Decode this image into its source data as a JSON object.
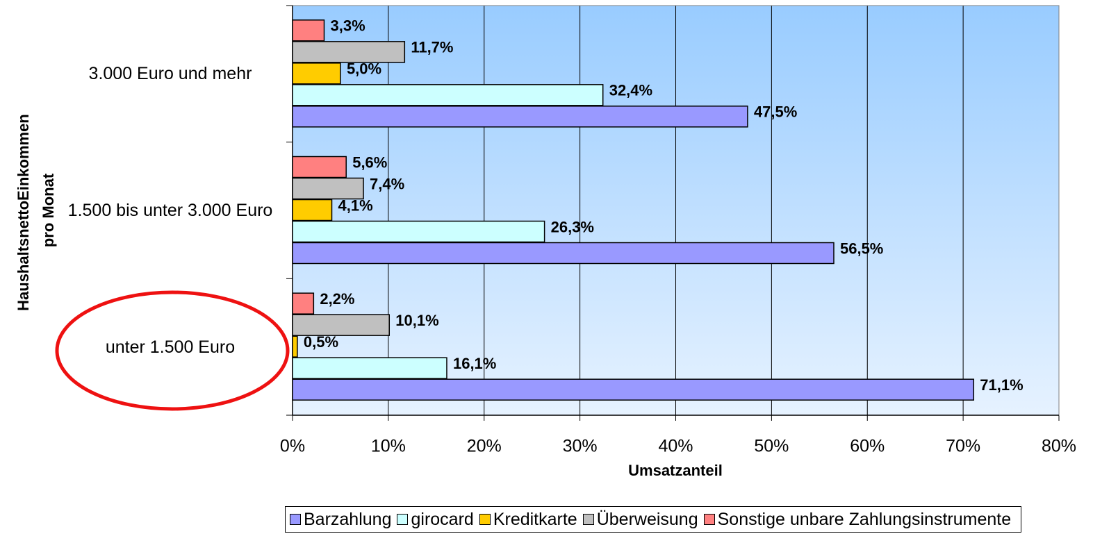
{
  "chart_data": {
    "type": "hbar",
    "ylabel": [
      "HaushaltsnettoEinkommen",
      "pro Monat"
    ],
    "xlabel": "Umsatzanteil",
    "categories": [
      "unter 1.500 Euro",
      "1.500 bis unter 3.000 Euro",
      "3.000 Euro und mehr"
    ],
    "series": [
      {
        "name": "Barzahlung",
        "color": "#9999ff",
        "values": [
          71.1,
          56.5,
          47.5
        ],
        "value_labels": [
          "71,1%",
          "56,5%",
          "47,5%"
        ]
      },
      {
        "name": "girocard",
        "color": "#ccffff",
        "values": [
          16.1,
          26.3,
          32.4
        ],
        "value_labels": [
          "16,1%",
          "26,3%",
          "32,4%"
        ]
      },
      {
        "name": "Kreditkarte",
        "color": "#ffcc00",
        "values": [
          0.5,
          4.1,
          5.0
        ],
        "value_labels": [
          "0,5%",
          "4,1%",
          "5,0%"
        ]
      },
      {
        "name": "Überweisung",
        "color": "#c0c0c0",
        "values": [
          10.1,
          7.4,
          11.7
        ],
        "value_labels": [
          "10,1%",
          "7,4%",
          "11,7%"
        ]
      },
      {
        "name": "Sonstige unbare Zahlungsinstrumente",
        "color": "#ff8080",
        "values": [
          2.2,
          5.6,
          3.3
        ],
        "value_labels": [
          "2,2%",
          "5,6%",
          "3,3%"
        ]
      }
    ],
    "xlim": [
      0,
      80
    ],
    "xticks": [
      {
        "value": 0,
        "label": "0%"
      },
      {
        "value": 10,
        "label": "10%"
      },
      {
        "value": 20,
        "label": "20%"
      },
      {
        "value": 30,
        "label": "30%"
      },
      {
        "value": 40,
        "label": "40%"
      },
      {
        "value": 50,
        "label": "50%"
      },
      {
        "value": 60,
        "label": "60%"
      },
      {
        "value": 70,
        "label": "70%"
      },
      {
        "value": 80,
        "label": "80%"
      }
    ],
    "grid": true,
    "legend": "bottom"
  }
}
